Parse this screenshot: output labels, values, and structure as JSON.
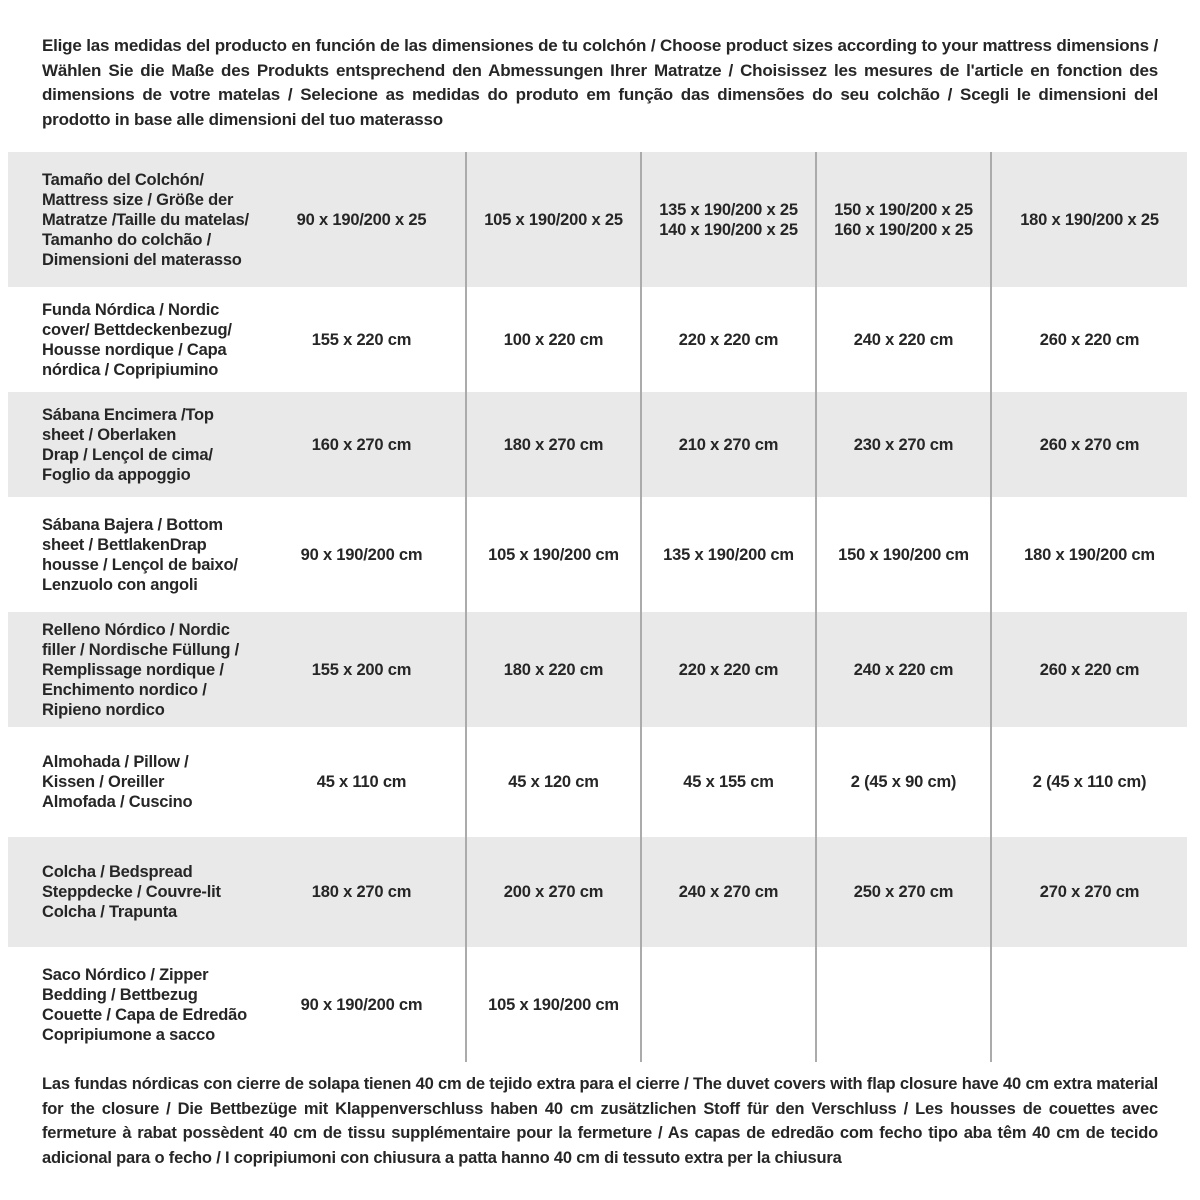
{
  "intro": {
    "text": "Elige las medidas del producto en función de las dimensiones de tu colchón / Choose product sizes according to your mattress dimensions / Wählen Sie die Maße des Produkts entsprechend den Abmessungen Ihrer Matratze / Choisissez les mesures de l'article en fonction des dimensions de votre matelas / Selecione as medidas do produto em função das dimensões do seu colchão / Scegli le dimensioni del prodotto in base alle dimensioni del tuo materasso"
  },
  "table": {
    "rows": [
      {
        "label": "Tamaño del Colchón/\nMattress size / Größe der\nMatratze /Taille du matelas/\nTamanho do colchão /\nDimensioni del materasso",
        "values": [
          "90 x 190/200 x 25",
          "105 x 190/200 x 25",
          "135 x 190/200 x 25\n140 x 190/200 x 25",
          "150 x 190/200 x 25\n160 x 190/200 x 25",
          "180 x 190/200 x 25"
        ]
      },
      {
        "label": "Funda Nórdica / Nordic\ncover/ Bettdeckenbezug/\nHousse nordique / Capa\nnórdica / Copripiumino",
        "values": [
          "155 x 220 cm",
          "100 x 220 cm",
          "220 x 220 cm",
          "240 x 220 cm",
          "260 x 220 cm"
        ]
      },
      {
        "label": "Sábana Encimera /Top\nsheet / Oberlaken\nDrap / Lençol de cima/\nFoglio da appoggio",
        "values": [
          "160 x 270 cm",
          "180 x 270 cm",
          "210 x 270 cm",
          "230 x 270 cm",
          "260 x 270 cm"
        ]
      },
      {
        "label": "Sábana Bajera / Bottom\nsheet / BettlakenDrap\nhousse / Lençol de baixo/\nLenzuolo con angoli",
        "values": [
          "90 x 190/200 cm",
          "105 x 190/200 cm",
          "135 x 190/200 cm",
          "150 x 190/200 cm",
          "180 x 190/200 cm"
        ]
      },
      {
        "label": "Relleno Nórdico / Nordic\nfiller / Nordische Füllung /\nRemplissage nordique /\nEnchimento nordico /\nRipieno nordico",
        "values": [
          "155 x 200 cm",
          "180 x 220 cm",
          "220 x 220 cm",
          "240 x 220 cm",
          "260 x 220 cm"
        ]
      },
      {
        "label": "Almohada / Pillow /\nKissen / Oreiller\nAlmofada / Cuscino",
        "values": [
          "45 x 110 cm",
          "45 x 120 cm",
          "45 x 155 cm",
          "2 (45 x 90 cm)",
          "2 (45 x 110 cm)"
        ]
      },
      {
        "label": "Colcha / Bedspread\nSteppdecke / Couvre-lit\nColcha / Trapunta",
        "values": [
          "180 x 270 cm",
          "200 x 270 cm",
          "240 x 270 cm",
          "250 x 270 cm",
          "270 x 270 cm"
        ]
      },
      {
        "label": "Saco Nórdico / Zipper\nBedding / Bettbezug\nCouette / Capa de Edredão\nCopripiumone a sacco",
        "values": [
          "90 x 190/200 cm",
          "105 x 190/200 cm",
          "",
          "",
          ""
        ]
      }
    ]
  },
  "footnote": {
    "text": "Las fundas nórdicas con cierre de solapa tienen 40 cm de tejido extra para el cierre / The duvet covers with flap closure have 40 cm extra material for the closure / Die Bettbezüge mit Klappenverschluss haben 40 cm zusätzlichen Stoff für den Verschluss / Les housses de couettes avec fermeture à rabat possèdent 40 cm de tissu supplémentaire pour la fermeture / As capas de edredão com fecho tipo aba têm 40 cm de tecido adicional para o fecho / I copripiumoni con chiusura a patta hanno 40 cm di tessuto extra per la chiusura"
  },
  "colors": {
    "row_shaded": "#e9e9e9",
    "row_plain": "#ffffff",
    "divider": "#ababab",
    "text": "#262626"
  }
}
